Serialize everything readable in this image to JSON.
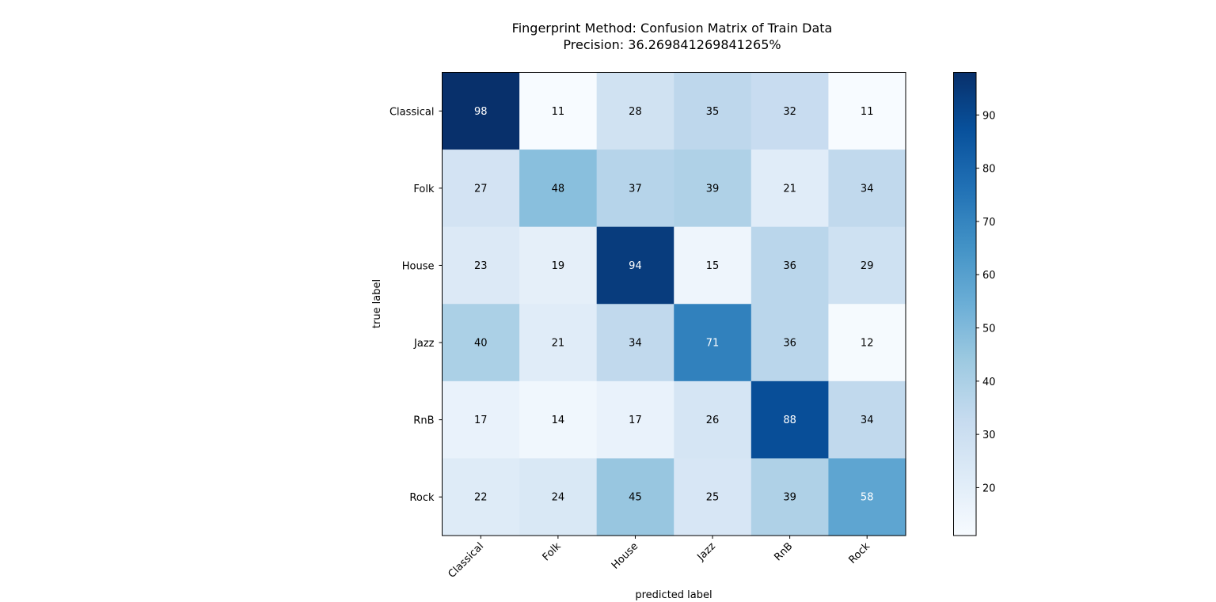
{
  "chart_data": {
    "type": "heatmap",
    "title": "Fingerprint Method: Confusion Matrix of Train Data",
    "subtitle": "Precision: 36.269841269841265%",
    "xlabel": "predicted label",
    "ylabel": "true label",
    "x_categories": [
      "Classical",
      "Folk",
      "House",
      "Jazz",
      "RnB",
      "Rock"
    ],
    "y_categories": [
      "Classical",
      "Folk",
      "House",
      "Jazz",
      "RnB",
      "Rock"
    ],
    "values": [
      [
        98,
        11,
        28,
        35,
        32,
        11
      ],
      [
        27,
        48,
        37,
        39,
        21,
        34
      ],
      [
        23,
        19,
        94,
        15,
        36,
        29
      ],
      [
        40,
        21,
        34,
        71,
        36,
        12
      ],
      [
        17,
        14,
        17,
        26,
        88,
        34
      ],
      [
        22,
        24,
        45,
        25,
        39,
        58
      ]
    ],
    "value_range": [
      11,
      98
    ],
    "colormap": "Blues",
    "colorbar": {
      "ticks": [
        20,
        30,
        40,
        50,
        60,
        70,
        80,
        90
      ],
      "tick_labels": [
        "20",
        "30",
        "40",
        "50",
        "60",
        "70",
        "80",
        "90"
      ]
    },
    "grid": false
  }
}
